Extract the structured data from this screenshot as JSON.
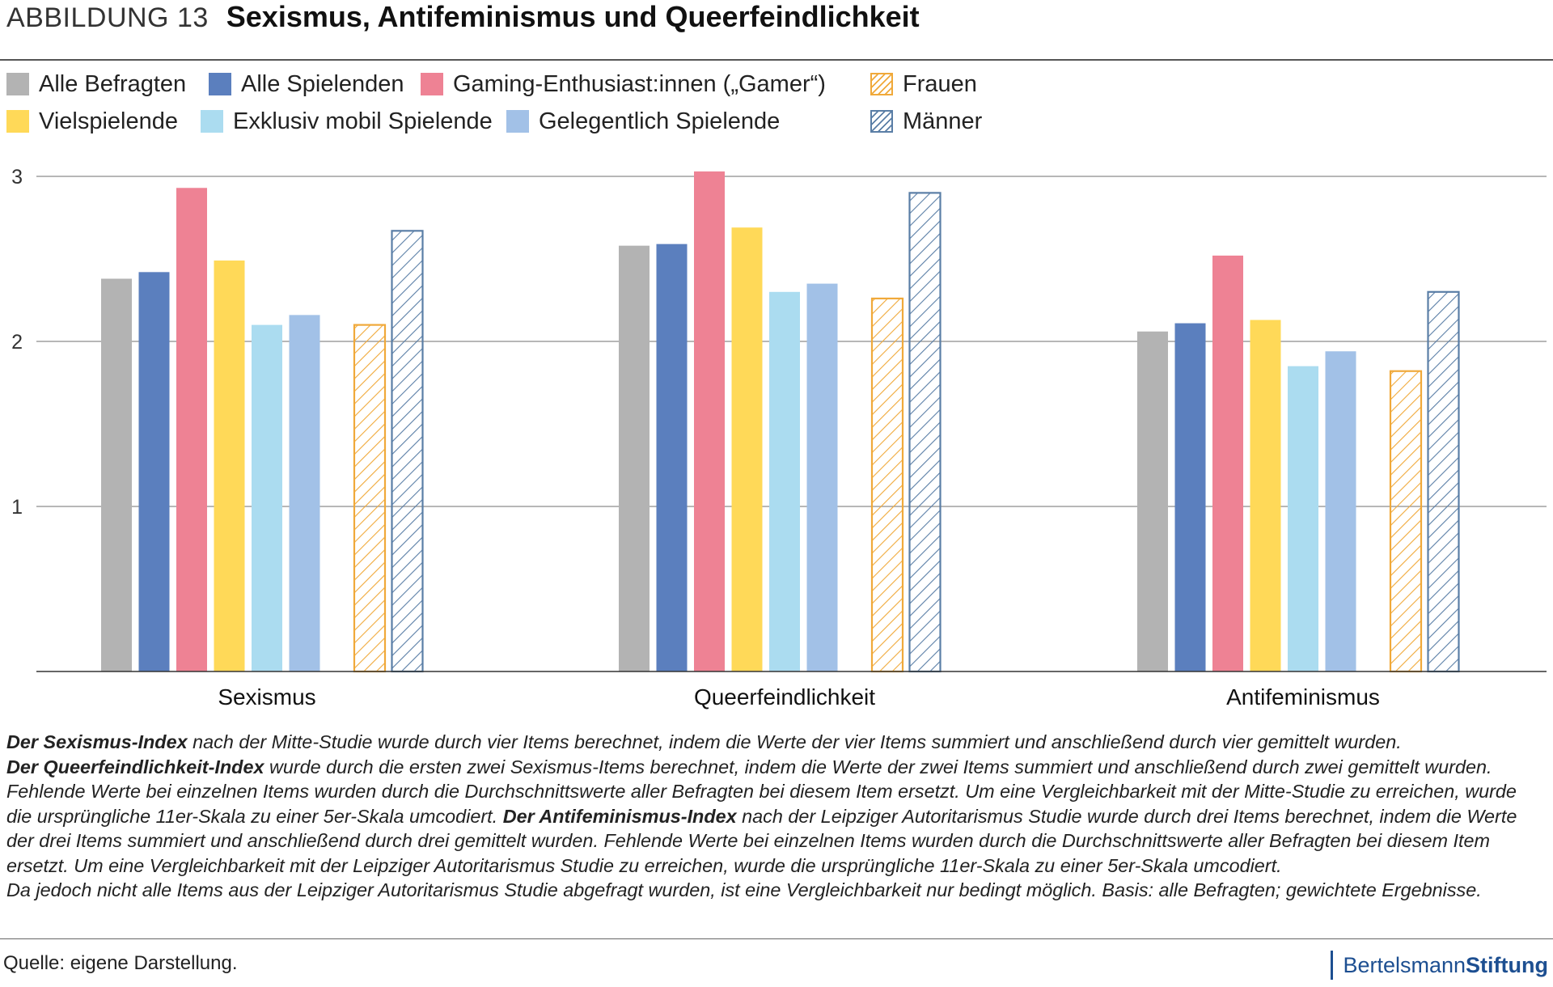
{
  "header": {
    "figure_label": "ABBILDUNG 13",
    "title": "Sexismus, Antifeminismus und Queerfeindlichkeit"
  },
  "legend": [
    {
      "label": "Alle Befragten",
      "color": "#b3b3b3",
      "pattern": "solid"
    },
    {
      "label": "Alle Spielenden",
      "color": "#5b7fbe",
      "pattern": "solid"
    },
    {
      "label": "Gaming-Enthusiast:innen („Gamer“)",
      "color": "#ee8294",
      "pattern": "solid"
    },
    {
      "label": "Frauen",
      "color": "#f0a93a",
      "pattern": "hatched"
    },
    {
      "label": "Vielspielende",
      "color": "#ffd958",
      "pattern": "solid"
    },
    {
      "label": "Exklusiv mobil Spielende",
      "color": "#abdcf0",
      "pattern": "solid"
    },
    {
      "label": "Gelegentlich Spielende",
      "color": "#a2c1e7",
      "pattern": "solid"
    },
    {
      "label": "Männer",
      "color": "#5a7ea6",
      "pattern": "hatched"
    }
  ],
  "chart_data": {
    "type": "bar",
    "categories": [
      "Sexismus",
      "Queerfeindlichkeit",
      "Antifeminismus"
    ],
    "series": [
      {
        "name": "Alle Befragten",
        "values": [
          2.38,
          2.58,
          2.06
        ],
        "color": "#b3b3b3",
        "pattern": "solid"
      },
      {
        "name": "Alle Spielenden",
        "values": [
          2.42,
          2.59,
          2.11
        ],
        "color": "#5b7fbe",
        "pattern": "solid"
      },
      {
        "name": "Gaming-Enthusiast:innen („Gamer“)",
        "values": [
          2.93,
          3.03,
          2.52
        ],
        "color": "#ee8294",
        "pattern": "solid"
      },
      {
        "name": "Vielspielende",
        "values": [
          2.49,
          2.69,
          2.13
        ],
        "color": "#ffd958",
        "pattern": "solid"
      },
      {
        "name": "Exklusiv mobil Spielende",
        "values": [
          2.1,
          2.3,
          1.85
        ],
        "color": "#abdcf0",
        "pattern": "solid"
      },
      {
        "name": "Gelegentlich Spielende",
        "values": [
          2.16,
          2.35,
          1.94
        ],
        "color": "#a2c1e7",
        "pattern": "solid"
      },
      {
        "name": "Frauen",
        "values": [
          2.1,
          2.26,
          1.82
        ],
        "color": "#f0a93a",
        "pattern": "hatched"
      },
      {
        "name": "Männer",
        "values": [
          2.67,
          2.9,
          2.3
        ],
        "color": "#5a7ea6",
        "pattern": "hatched"
      }
    ],
    "yticks": [
      "1",
      "2",
      "3"
    ],
    "ylim": [
      0,
      3
    ],
    "grid": true,
    "legend_position": "top"
  },
  "notes": {
    "b1": "Der Sexismus-Index",
    "t1": " nach der Mitte-Studie wurde durch vier Items berechnet, indem die Werte der vier Items summiert und anschließend durch vier gemittelt wurden.",
    "b2": "Der Queerfeindlichkeit-Index",
    "t2": " wurde durch die ersten zwei Sexismus-Items berechnet, indem die Werte der zwei Items summiert und anschließend durch zwei gemittelt wurden. Fehlende Werte bei einzelnen Items wurden durch die Durchschnittswerte aller Befragten bei diesem Item ersetzt. Um eine Vergleichbarkeit mit der Mitte-Studie zu erreichen, wurde die ursprüngliche 11er-Skala zu einer 5er-Skala umcodiert. ",
    "b3": "Der Antifeminismus-Index",
    "t3": " nach der Leipziger Autoritarismus Studie wurde durch drei Items berechnet, indem die Werte der drei Items summiert und anschließend durch drei gemittelt wurden. Fehlende Werte bei einzelnen Items wurden durch die Durchschnittswerte aller Befragten bei diesem Item ersetzt. Um eine Vergleichbarkeit mit der Leipziger Autoritarismus Studie zu erreichen, wurde die ursprüngliche 11er-Skala zu einer 5er-Skala umcodiert.",
    "t4": "Da jedoch nicht alle Items aus der Leipziger Autoritarismus Studie abgefragt wurden, ist eine Vergleichbarkeit nur bedingt möglich. Basis: alle Befragten; gewichtete Ergebnisse."
  },
  "footer": {
    "source": "Quelle: eigene Darstellung.",
    "brand_part1": "Bertelsmann",
    "brand_part2": "Stiftung"
  }
}
